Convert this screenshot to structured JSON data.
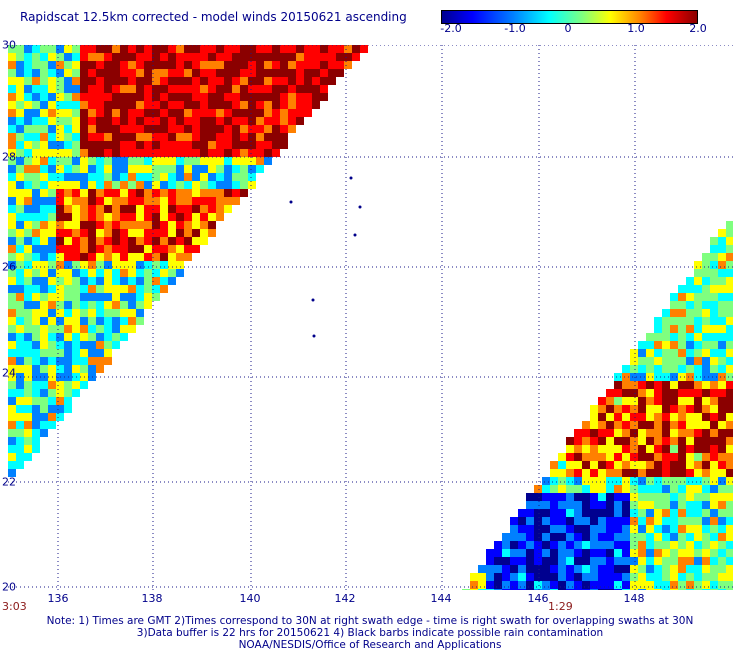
{
  "title": "Rapidscat 12.5km corrected - model winds 20150621 ascending",
  "colorbar": {
    "ticks": [
      "-2.0",
      "-1.0",
      "0",
      "1.0",
      "2.0"
    ],
    "colors": [
      "#00008f",
      "#0000ff",
      "#0080ff",
      "#00ffff",
      "#7fff7f",
      "#ffff00",
      "#ff8000",
      "#ff0000",
      "#8b0000"
    ]
  },
  "axes": {
    "lon_labels": [
      "136",
      "138",
      "140",
      "142",
      "144",
      "146",
      "148"
    ],
    "lat_labels": [
      "30",
      "28",
      "26",
      "24",
      "22",
      "20"
    ]
  },
  "times": [
    "3:03",
    "1:29"
  ],
  "notes": [
    "Note: 1) Times are GMT 2)Times correspond to 30N at right swath edge - time is right swath for overlapping swaths at 30N",
    "3)Data buffer is 22 hrs for 20150621 4) Black barbs indicate possible rain contamination",
    "NOAA/NESDIS/Office of Research and Applications"
  ]
}
